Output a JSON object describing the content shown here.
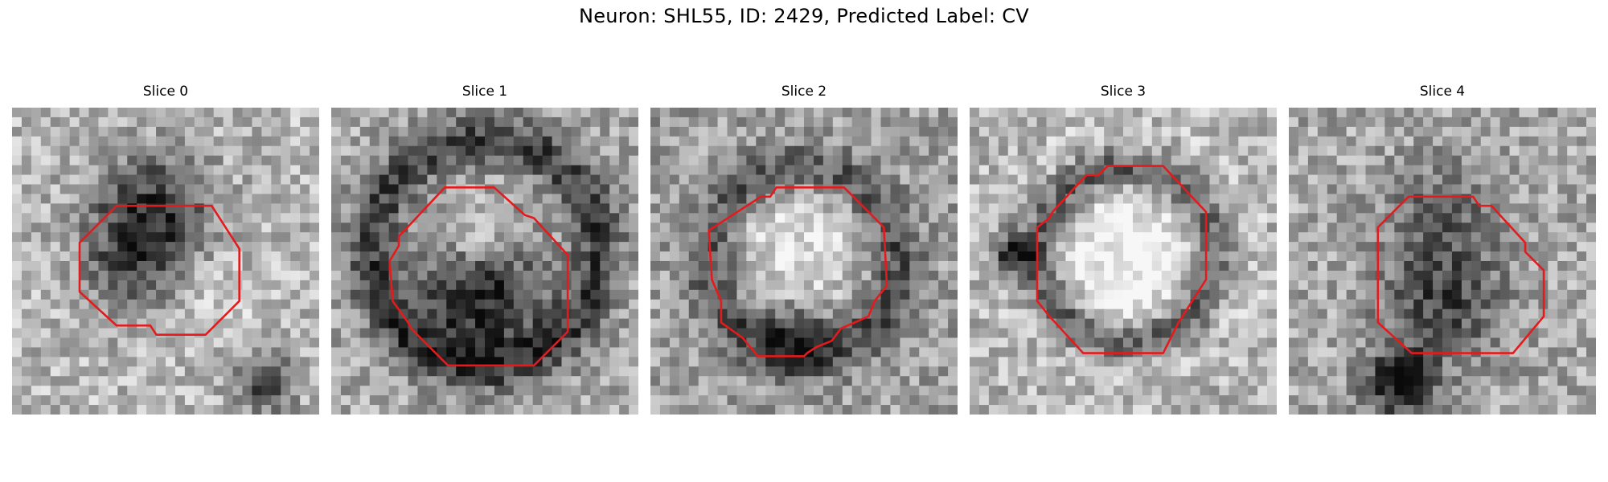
{
  "figure": {
    "title": "Neuron: SHL55, ID: 2429, Predicted Label: CV"
  },
  "slices": [
    {
      "title": "Slice 0"
    },
    {
      "title": "Slice 1"
    },
    {
      "title": "Slice 2"
    },
    {
      "title": "Slice 3"
    },
    {
      "title": "Slice 4"
    }
  ],
  "colors": {
    "contour": "#e41a1c",
    "background": "#ffffff"
  },
  "colormap": "gray"
}
